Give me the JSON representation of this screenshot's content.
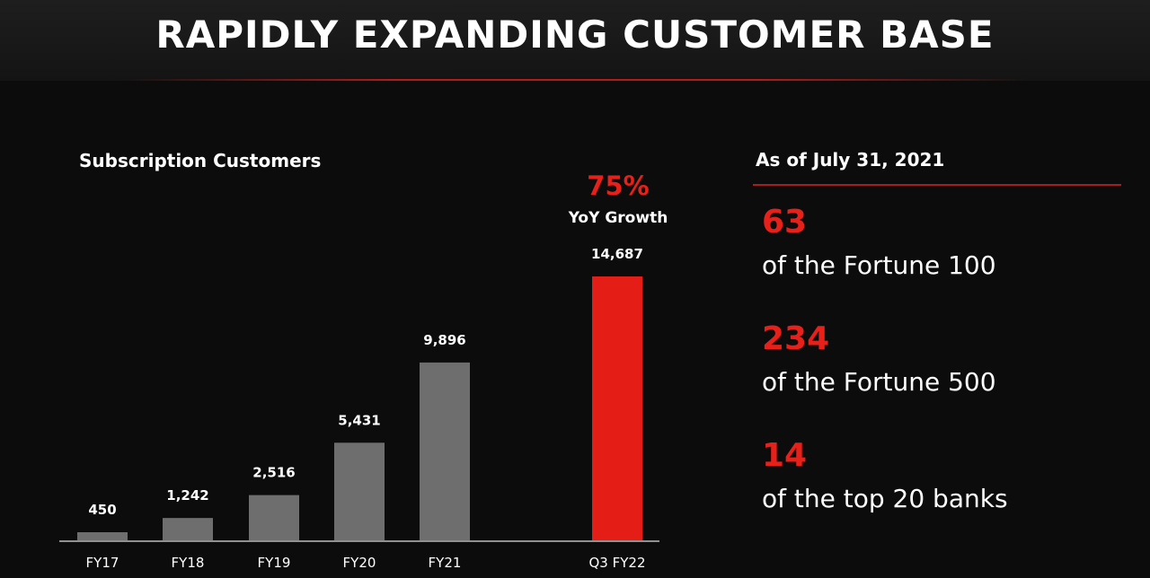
{
  "header": {
    "title": "RAPIDLY EXPANDING CUSTOMER BASE"
  },
  "growth": {
    "value": "75%",
    "label": "YoY Growth"
  },
  "side": {
    "asof": "As of July 31, 2021",
    "stats": [
      {
        "number": "63",
        "text": "of the Fortune 100"
      },
      {
        "number": "234",
        "text": "of the Fortune 500"
      },
      {
        "number": "14",
        "text": "of the top 20 banks"
      }
    ]
  },
  "colors": {
    "bar": "#6e6e6e",
    "highlight": "#e41e17",
    "accent": "#e8201a"
  },
  "chart_data": {
    "type": "bar",
    "title": "Subscription Customers",
    "categories": [
      "FY17",
      "FY18",
      "FY19",
      "FY20",
      "FY21",
      "Q3 FY22"
    ],
    "values": [
      450,
      1242,
      2516,
      5431,
      9896,
      14687
    ],
    "value_labels": [
      "450",
      "1,242",
      "2,516",
      "5,431",
      "9,896",
      "14,687"
    ],
    "highlight_index": 5,
    "xlabel": "",
    "ylabel": "",
    "ylim": [
      0,
      14687
    ],
    "grid": false,
    "legend": "none"
  }
}
